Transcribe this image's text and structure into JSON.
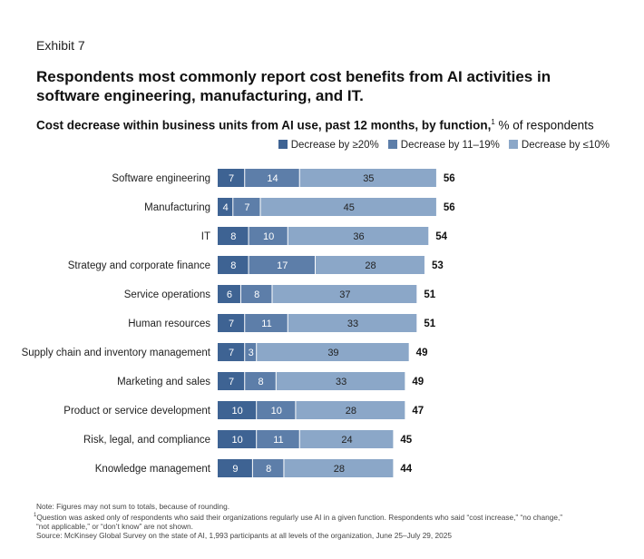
{
  "exhibit": "Exhibit 7",
  "title": "Respondents most commonly report cost benefits from AI activities in software engineering, manufacturing, and IT.",
  "subtitle_bold": "Cost decrease within business units from AI use, past 12 months, by function,",
  "subtitle_sup": "1",
  "subtitle_rest": " % of respondents",
  "colors": {
    "dark": "#3e6393",
    "mid": "#5d7ea9",
    "light": "#8ba7c8"
  },
  "chart_data": {
    "type": "bar",
    "orientation": "horizontal",
    "stacked": true,
    "legend_position": "top-right",
    "categories": [
      "Software engineering",
      "Manufacturing",
      "IT",
      "Strategy and corporate finance",
      "Service operations",
      "Human resources",
      "Supply chain and inventory management",
      "Marketing and sales",
      "Product or service development",
      "Risk, legal, and compliance",
      "Knowledge management"
    ],
    "series": [
      {
        "name": "Decrease by ≥20%",
        "values": [
          7,
          4,
          8,
          8,
          6,
          7,
          7,
          7,
          10,
          10,
          9
        ]
      },
      {
        "name": "Decrease by 11–19%",
        "values": [
          14,
          7,
          10,
          17,
          8,
          11,
          3,
          8,
          10,
          11,
          8
        ]
      },
      {
        "name": "Decrease by ≤10%",
        "values": [
          35,
          45,
          36,
          28,
          37,
          33,
          39,
          33,
          28,
          24,
          28
        ]
      }
    ],
    "totals": [
      56,
      56,
      54,
      53,
      51,
      51,
      49,
      49,
      47,
      45,
      44
    ]
  },
  "notes": {
    "note": "Note: Figures may not sum to totals, because of rounding.",
    "footnote_mark": "1",
    "footnote": "Question was asked only of respondents who said their organizations regularly use AI in a given function. Respondents who said “cost increase,” “no change,”",
    "footnote2": "“not applicable,” or “don’t know” are not shown.",
    "source": "Source: McKinsey Global Survey on the state of AI, 1,993 participants at all levels of the organization, June 25–July 29, 2025"
  }
}
